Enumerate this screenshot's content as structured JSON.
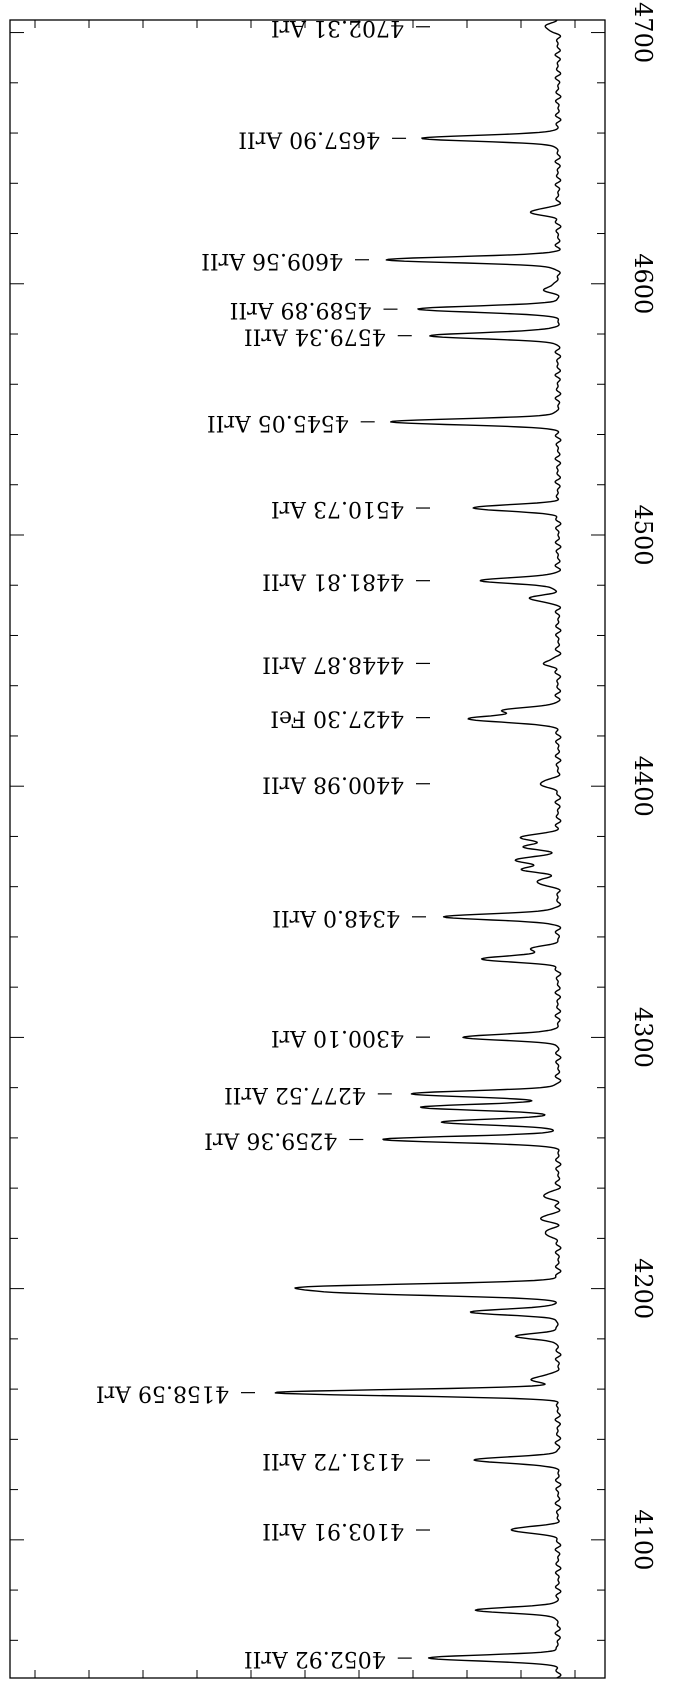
{
  "chart_data": {
    "type": "line",
    "orientation": "rotated-180-text-vertical-wavelength-axis",
    "xlim": [
      4045,
      4705
    ],
    "x_ticks": [
      4100,
      4200,
      4300,
      4400,
      4500,
      4600,
      4700
    ],
    "x_tick_labels": [
      "4100",
      "4200",
      "4300",
      "4400",
      "4500",
      "4600",
      "4700"
    ],
    "xlabel": "",
    "ylabel": "",
    "title": "",
    "grid": false,
    "line_color": "#000000",
    "lines": [
      {
        "wavelength": 4052.92,
        "label": "4052.92 ArII",
        "peak": 0.45
      },
      {
        "wavelength": 4072.0,
        "label": "",
        "peak": 0.28
      },
      {
        "wavelength": 4103.91,
        "label": "4103.91 ArII",
        "peak": 0.17
      },
      {
        "wavelength": 4131.72,
        "label": "4131.72 ArII",
        "peak": 0.3
      },
      {
        "wavelength": 4158.59,
        "label": "4158.59 ArI",
        "peak": 1.0
      },
      {
        "wavelength": 4164.0,
        "label": "",
        "peak": 0.1
      },
      {
        "wavelength": 4181.0,
        "label": "",
        "peak": 0.14
      },
      {
        "wavelength": 4190.7,
        "label": "",
        "peak": 0.3
      },
      {
        "wavelength": 4198.3,
        "label": "",
        "peak": 0.65
      },
      {
        "wavelength": 4200.7,
        "label": "",
        "peak": 0.8
      },
      {
        "wavelength": 4222.0,
        "label": "",
        "peak": 0.05
      },
      {
        "wavelength": 4228.0,
        "label": "",
        "peak": 0.06
      },
      {
        "wavelength": 4237.0,
        "label": "",
        "peak": 0.05
      },
      {
        "wavelength": 4259.36,
        "label": "4259.36 ArI",
        "peak": 0.62
      },
      {
        "wavelength": 4266.3,
        "label": "",
        "peak": 0.4
      },
      {
        "wavelength": 4272.2,
        "label": "",
        "peak": 0.48
      },
      {
        "wavelength": 4277.52,
        "label": "4277.52 ArII",
        "peak": 0.52
      },
      {
        "wavelength": 4300.1,
        "label": "4300.10 ArI",
        "peak": 0.33
      },
      {
        "wavelength": 4331.2,
        "label": "",
        "peak": 0.27
      },
      {
        "wavelength": 4335.0,
        "label": "",
        "peak": 0.1
      },
      {
        "wavelength": 4348.0,
        "label": "4348.0 ArII",
        "peak": 0.4
      },
      {
        "wavelength": 4362.0,
        "label": "",
        "peak": 0.08
      },
      {
        "wavelength": 4367.0,
        "label": "",
        "peak": 0.13
      },
      {
        "wavelength": 4370.7,
        "label": "",
        "peak": 0.15
      },
      {
        "wavelength": 4376.0,
        "label": "",
        "peak": 0.12
      },
      {
        "wavelength": 4379.7,
        "label": "",
        "peak": 0.13
      },
      {
        "wavelength": 4400.98,
        "label": "4400.98 ArII",
        "peak": 0.07
      },
      {
        "wavelength": 4426.0,
        "label": "",
        "peak": 0.15
      },
      {
        "wavelength": 4427.3,
        "label": "4427.30 FeI",
        "peak": 0.2
      },
      {
        "wavelength": 4430.2,
        "label": "",
        "peak": 0.18
      },
      {
        "wavelength": 4448.87,
        "label": "4448.87 ArII",
        "peak": 0.05
      },
      {
        "wavelength": 4474.8,
        "label": "",
        "peak": 0.1
      },
      {
        "wavelength": 4481.81,
        "label": "4481.81 ArII",
        "peak": 0.27
      },
      {
        "wavelength": 4510.73,
        "label": "4510.73 ArI",
        "peak": 0.3
      },
      {
        "wavelength": 4545.05,
        "label": "4545.05 ArII",
        "peak": 0.58
      },
      {
        "wavelength": 4579.34,
        "label": "4579.34 ArII",
        "peak": 0.45
      },
      {
        "wavelength": 4589.89,
        "label": "4589.89 ArII",
        "peak": 0.5
      },
      {
        "wavelength": 4598.0,
        "label": "",
        "peak": 0.05
      },
      {
        "wavelength": 4609.56,
        "label": "4609.56 ArII",
        "peak": 0.6
      },
      {
        "wavelength": 4628.5,
        "label": "",
        "peak": 0.1
      },
      {
        "wavelength": 4657.9,
        "label": "4657.90 ArII",
        "peak": 0.47
      },
      {
        "wavelength": 4702.31,
        "label": "4702.31 ArI",
        "peak": 0.05
      }
    ]
  }
}
